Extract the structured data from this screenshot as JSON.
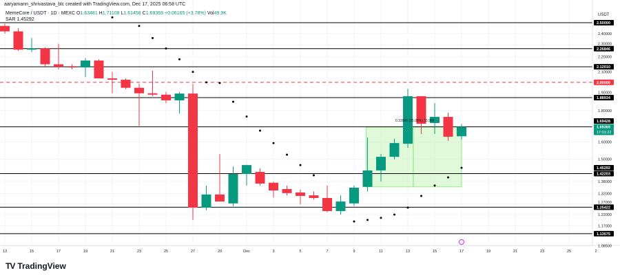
{
  "header": {
    "attribution": "aaryamann_shrivastava_blc created with TradingView.com, Dec 17, 2025 06:58 UTC"
  },
  "legend": {
    "symbol": "MemeCore / USDT · 1D · MEXC",
    "o_label": "O",
    "o": "1.63481",
    "h_label": "H",
    "h": "1.71108",
    "l_label": "L",
    "l": "1.61458",
    "c_label": "C",
    "c": "1.69369",
    "change": "+0.06165 (+3.78%)",
    "vol_label": "Vol",
    "vol": "49.9K",
    "sar_label": "SAR",
    "sar": "1.45292"
  },
  "footer": {
    "brand": "TradingView",
    "logo_icon": "tradingview-logo-icon"
  },
  "chart_data": {
    "type": "candlestick",
    "yscale": "log",
    "ylim": [
      1.085,
      2.57
    ],
    "axis_unit": "USDT",
    "grid": true,
    "colors": {
      "up": "#089981",
      "down": "#f23645",
      "sar": "#000000",
      "box": "#ccf5c0",
      "dashed": "#f23645"
    },
    "y_ticks": [
      "2.40000",
      "2.30000",
      "2.20000",
      "2.10000",
      "1.90000",
      "1.80000",
      "1.60000",
      "1.50000",
      "1.38000",
      "1.32000",
      "1.27000",
      "1.22000",
      "1.17000",
      "1.08500"
    ],
    "x_ticks": [
      "13",
      "15",
      "17",
      "19",
      "21",
      "23",
      "25",
      "27",
      "29",
      "Dec",
      "3",
      "5",
      "7",
      "9",
      "11",
      "13",
      "15",
      "17",
      "19",
      "21",
      "23",
      "25",
      "2"
    ],
    "candles": [
      {
        "date": "2025-11-13",
        "o": 2.47,
        "h": 2.49,
        "l": 2.4,
        "c": 2.42
      },
      {
        "date": "2025-11-14",
        "o": 2.42,
        "h": 2.45,
        "l": 2.25,
        "c": 2.26
      },
      {
        "date": "2025-11-15",
        "o": 2.26,
        "h": 2.36,
        "l": 2.24,
        "c": 2.27
      },
      {
        "date": "2025-11-16",
        "o": 2.27,
        "h": 2.28,
        "l": 2.12,
        "c": 2.14
      },
      {
        "date": "2025-11-17",
        "o": 2.14,
        "h": 2.31,
        "l": 2.1,
        "c": 2.12
      },
      {
        "date": "2025-11-18",
        "o": 2.12,
        "h": 2.14,
        "l": 2.1,
        "c": 2.115
      },
      {
        "date": "2025-11-19",
        "o": 2.115,
        "h": 2.19,
        "l": 2.04,
        "c": 2.17
      },
      {
        "date": "2025-11-20",
        "o": 2.17,
        "h": 2.18,
        "l": 2.03,
        "c": 2.03
      },
      {
        "date": "2025-11-21",
        "o": 2.03,
        "h": 2.08,
        "l": 1.92,
        "c": 2.02
      },
      {
        "date": "2025-11-22",
        "o": 2.02,
        "h": 2.03,
        "l": 1.95,
        "c": 1.96
      },
      {
        "date": "2025-11-23",
        "o": 1.96,
        "h": 1.99,
        "l": 1.7,
        "c": 1.92
      },
      {
        "date": "2025-11-24",
        "o": 1.92,
        "h": 2.09,
        "l": 1.9,
        "c": 1.91
      },
      {
        "date": "2025-11-25",
        "o": 1.91,
        "h": 1.93,
        "l": 1.85,
        "c": 1.87
      },
      {
        "date": "2025-11-26",
        "o": 1.87,
        "h": 1.93,
        "l": 1.78,
        "c": 1.918
      },
      {
        "date": "2025-11-27",
        "o": 1.918,
        "h": 1.99,
        "l": 1.196,
        "c": 1.252
      },
      {
        "date": "2025-11-28",
        "o": 1.252,
        "h": 1.36,
        "l": 1.24,
        "c": 1.315
      },
      {
        "date": "2025-11-29",
        "o": 1.315,
        "h": 1.53,
        "l": 1.28,
        "c": 1.281
      },
      {
        "date": "2025-11-30",
        "o": 1.272,
        "h": 1.46,
        "l": 1.259,
        "c": 1.42
      },
      {
        "date": "2025-12-01",
        "o": 1.42,
        "h": 1.47,
        "l": 1.36,
        "c": 1.468
      },
      {
        "date": "2025-12-02",
        "o": 1.431,
        "h": 1.45,
        "l": 1.36,
        "c": 1.37
      },
      {
        "date": "2025-12-03",
        "o": 1.374,
        "h": 1.38,
        "l": 1.3,
        "c": 1.335
      },
      {
        "date": "2025-12-04",
        "o": 1.342,
        "h": 1.36,
        "l": 1.31,
        "c": 1.322
      },
      {
        "date": "2025-12-05",
        "o": 1.325,
        "h": 1.34,
        "l": 1.268,
        "c": 1.308
      },
      {
        "date": "2025-12-06",
        "o": 1.311,
        "h": 1.33,
        "l": 1.29,
        "c": 1.298
      },
      {
        "date": "2025-12-07",
        "o": 1.298,
        "h": 1.36,
        "l": 1.23,
        "c": 1.236
      },
      {
        "date": "2025-12-08",
        "o": 1.236,
        "h": 1.31,
        "l": 1.22,
        "c": 1.281
      },
      {
        "date": "2025-12-09",
        "o": 1.272,
        "h": 1.36,
        "l": 1.26,
        "c": 1.349
      },
      {
        "date": "2025-12-10",
        "o": 1.353,
        "h": 1.627,
        "l": 1.33,
        "c": 1.439
      },
      {
        "date": "2025-12-11",
        "o": 1.439,
        "h": 1.53,
        "l": 1.38,
        "c": 1.514
      },
      {
        "date": "2025-12-12",
        "o": 1.514,
        "h": 1.62,
        "l": 1.5,
        "c": 1.594
      },
      {
        "date": "2025-12-13",
        "o": 1.59,
        "h": 1.953,
        "l": 1.566,
        "c": 1.899
      },
      {
        "date": "2025-12-14",
        "o": 1.899,
        "h": 1.9,
        "l": 1.649,
        "c": 1.713
      },
      {
        "date": "2025-12-15",
        "o": 1.718,
        "h": 1.851,
        "l": 1.649,
        "c": 1.758
      },
      {
        "date": "2025-12-16",
        "o": 1.758,
        "h": 1.785,
        "l": 1.607,
        "c": 1.632
      },
      {
        "date": "2025-12-17",
        "o": 1.63481,
        "h": 1.71108,
        "l": 1.61458,
        "c": 1.69369
      }
    ],
    "sar": [
      {
        "date": "2025-11-21",
        "v": 2.55
      },
      {
        "date": "2025-11-23",
        "v": 2.47
      },
      {
        "date": "2025-11-24",
        "v": 2.36
      },
      {
        "date": "2025-11-25",
        "v": 2.27
      },
      {
        "date": "2025-11-26",
        "v": 2.18
      },
      {
        "date": "2025-11-27",
        "v": 2.08
      },
      {
        "date": "2025-11-28",
        "v": 2.0
      },
      {
        "date": "2025-11-29",
        "v": 1.995
      },
      {
        "date": "2025-11-30",
        "v": 1.86
      },
      {
        "date": "2025-12-01",
        "v": 1.76
      },
      {
        "date": "2025-12-02",
        "v": 1.67
      },
      {
        "date": "2025-12-03",
        "v": 1.594
      },
      {
        "date": "2025-12-04",
        "v": 1.526
      },
      {
        "date": "2025-12-05",
        "v": 1.468
      },
      {
        "date": "2025-12-06",
        "v": 1.413
      },
      {
        "date": "2025-12-09",
        "v": 1.189
      },
      {
        "date": "2025-12-10",
        "v": 1.196
      },
      {
        "date": "2025-12-11",
        "v": 1.205
      },
      {
        "date": "2025-12-12",
        "v": 1.22
      },
      {
        "date": "2025-12-13",
        "v": 1.252
      },
      {
        "date": "2025-12-14",
        "v": 1.308
      },
      {
        "date": "2025-12-15",
        "v": 1.36
      },
      {
        "date": "2025-12-16",
        "v": 1.402
      },
      {
        "date": "2025-12-17",
        "v": 1.45292
      }
    ],
    "levels": [
      {
        "price": 2.5,
        "label": "2.50000",
        "style": "solid"
      },
      {
        "price": 2.26846,
        "label": "2.26846",
        "style": "solid"
      },
      {
        "price": 2.1201,
        "label": "2.12010",
        "style": "solid"
      },
      {
        "price": 2.0,
        "label": "2.00000",
        "style": "dashed"
      },
      {
        "price": 1.88934,
        "label": "1.88934",
        "style": "solid"
      },
      {
        "price": 1.69428,
        "label": "1.69428",
        "style": "solid"
      },
      {
        "price": 1.42203,
        "label": "1.42203",
        "style": "solid"
      },
      {
        "price": 1.25422,
        "label": "1.25422",
        "style": "solid"
      },
      {
        "price": 1.13575,
        "label": "1.13575",
        "style": "solid"
      }
    ],
    "sar_label": "1.45292",
    "last_price": {
      "label": "1.69369",
      "countdown": "17:01:22"
    },
    "measure_box": {
      "from": "2025-12-10",
      "to": "2025-12-17",
      "low": 1.353,
      "high": 1.692,
      "text": "0.33966 (25.08%) 33,966"
    }
  }
}
